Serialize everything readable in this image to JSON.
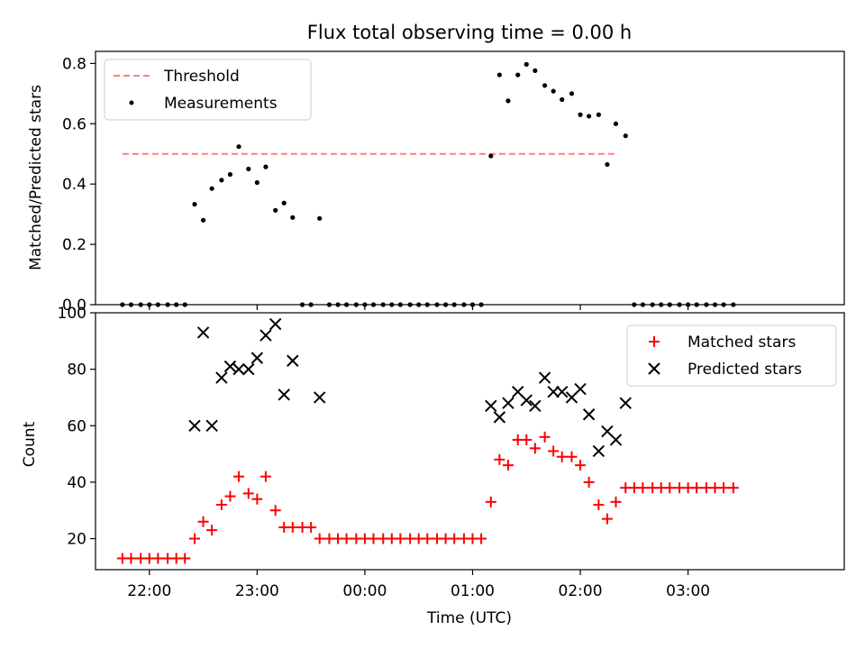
{
  "figure": {
    "title": "Flux total observing time = 0.00 h",
    "xlabel": "Time (UTC)",
    "xticks": [
      {
        "t": 22.0,
        "label": "22:00"
      },
      {
        "t": 23.0,
        "label": "23:00"
      },
      {
        "t": 24.0,
        "label": "00:00"
      },
      {
        "t": 25.0,
        "label": "01:00"
      },
      {
        "t": 26.0,
        "label": "02:00"
      },
      {
        "t": 27.0,
        "label": "03:00"
      }
    ],
    "xlim": [
      21.5,
      28.45
    ]
  },
  "chart_data": [
    {
      "type": "scatter",
      "ylabel": "Matched/Predicted stars",
      "ylim": [
        0,
        0.84
      ],
      "yticks": [
        0.0,
        0.2,
        0.4,
        0.6,
        0.8
      ],
      "ytick_labels": [
        "0.0",
        "0.2",
        "0.4",
        "0.6",
        "0.8"
      ],
      "legend_position": "top-left",
      "threshold": {
        "name": "Threshold",
        "value": 0.5,
        "x_range": [
          21.75,
          26.35
        ],
        "color": "#ff7f7f"
      },
      "series": [
        {
          "name": "Measurements",
          "color": "#000000",
          "marker": "dot",
          "x": [
            21.75,
            21.83,
            21.92,
            22.0,
            22.08,
            22.17,
            22.25,
            22.33,
            22.42,
            22.5,
            22.58,
            22.67,
            22.75,
            22.83,
            22.92,
            23.0,
            23.08,
            23.17,
            23.25,
            23.33,
            23.42,
            23.5,
            23.58,
            23.67,
            23.75,
            23.83,
            23.92,
            24.0,
            24.08,
            24.17,
            24.25,
            24.33,
            24.42,
            24.5,
            24.58,
            24.67,
            24.75,
            24.83,
            24.92,
            25.0,
            25.08,
            25.17,
            25.25,
            25.33,
            25.42,
            25.5,
            25.58,
            25.67,
            25.75,
            25.83,
            25.92,
            26.0,
            26.08,
            26.17,
            26.25,
            26.33,
            26.42,
            26.5,
            26.58,
            26.67,
            26.75,
            26.83,
            26.92,
            27.0,
            27.08,
            27.17,
            27.25,
            27.33,
            27.42
          ],
          "y": [
            0,
            0,
            0,
            0,
            0,
            0,
            0,
            0,
            0.333,
            0.28,
            0.385,
            0.413,
            0.432,
            0.524,
            0.45,
            0.405,
            0.457,
            0.313,
            0.337,
            0.289,
            0,
            0,
            0.286,
            0,
            0,
            0,
            0,
            0,
            0,
            0,
            0,
            0,
            0,
            0,
            0,
            0,
            0,
            0,
            0,
            0,
            0,
            0.493,
            0.762,
            0.676,
            0.762,
            0.797,
            0.776,
            0.727,
            0.708,
            0.68,
            0.7,
            0.63,
            0.625,
            0.63,
            0.465,
            0.6,
            0.56,
            0,
            0,
            0,
            0,
            0,
            0,
            0,
            0,
            0,
            0,
            0,
            0
          ]
        }
      ]
    },
    {
      "type": "scatter",
      "ylabel": "Count",
      "ylim": [
        9,
        100
      ],
      "yticks": [
        20,
        40,
        60,
        80,
        100
      ],
      "ytick_labels": [
        "20",
        "40",
        "60",
        "80",
        "100"
      ],
      "legend_position": "top-right",
      "series": [
        {
          "name": "Matched stars",
          "color": "#ff0000",
          "marker": "plus",
          "x": [
            21.75,
            21.83,
            21.92,
            22.0,
            22.08,
            22.17,
            22.25,
            22.33,
            22.42,
            22.5,
            22.58,
            22.67,
            22.75,
            22.83,
            22.92,
            23.0,
            23.08,
            23.17,
            23.25,
            23.33,
            23.42,
            23.5,
            23.58,
            23.67,
            23.75,
            23.83,
            23.92,
            24.0,
            24.08,
            24.17,
            24.25,
            24.33,
            24.42,
            24.5,
            24.58,
            24.67,
            24.75,
            24.83,
            24.92,
            25.0,
            25.08,
            25.17,
            25.25,
            25.33,
            25.42,
            25.5,
            25.58,
            25.67,
            25.75,
            25.83,
            25.92,
            26.0,
            26.08,
            26.17,
            26.25,
            26.33,
            26.42,
            26.5,
            26.58,
            26.67,
            26.75,
            26.83,
            26.92,
            27.0,
            27.08,
            27.17,
            27.25,
            27.33,
            27.42
          ],
          "y": [
            13,
            13,
            13,
            13,
            13,
            13,
            13,
            13,
            20,
            26,
            23,
            32,
            35,
            42,
            36,
            34,
            42,
            30,
            24,
            24,
            24,
            24,
            20,
            20,
            20,
            20,
            20,
            20,
            20,
            20,
            20,
            20,
            20,
            20,
            20,
            20,
            20,
            20,
            20,
            20,
            20,
            33,
            48,
            46,
            55,
            55,
            52,
            56,
            51,
            49,
            49,
            46,
            40,
            32,
            27,
            33,
            38,
            38,
            38,
            38,
            38,
            38,
            38,
            38,
            38,
            38,
            38,
            38,
            38
          ]
        },
        {
          "name": "Predicted stars",
          "color": "#000000",
          "marker": "x",
          "x": [
            22.42,
            22.5,
            22.58,
            22.67,
            22.75,
            22.83,
            22.92,
            23.0,
            23.08,
            23.17,
            23.25,
            23.33,
            23.58,
            25.17,
            25.25,
            25.33,
            25.42,
            25.5,
            25.58,
            25.67,
            25.75,
            25.83,
            25.92,
            26.0,
            26.08,
            26.17,
            26.25,
            26.33,
            26.42
          ],
          "y": [
            60,
            93,
            60,
            77,
            81,
            80,
            80,
            84,
            92,
            96,
            71,
            83,
            70,
            67,
            63,
            68,
            72,
            69,
            67,
            77,
            72,
            72,
            70,
            73,
            64,
            51,
            58,
            55,
            68
          ]
        }
      ]
    }
  ]
}
